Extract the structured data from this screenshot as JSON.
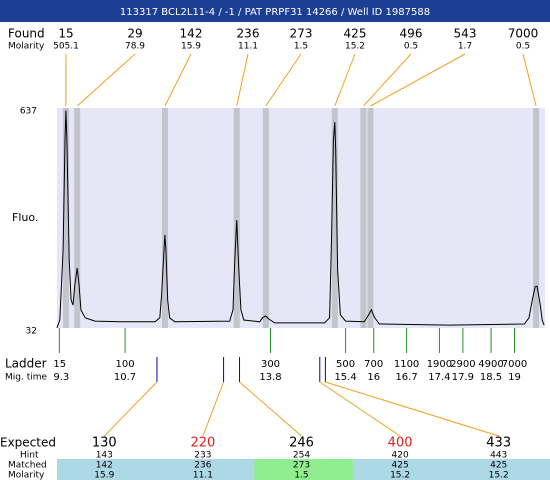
{
  "header": {
    "title": "113317  BCL2L11-4 / -1 / PAT PRPF31 14266 / Well ID 1987588"
  },
  "chart_data": {
    "type": "line",
    "y_label": "Fluo.",
    "ylim": [
      32,
      637
    ],
    "yticks": [
      637,
      32
    ],
    "xlim": [
      9.25,
      19.65
    ],
    "color": "#000000",
    "plot_color": "#e6e6f7",
    "band_color": "#c4c4cc",
    "link_color": "#f0a020",
    "x": [
      9.25,
      9.31,
      9.38,
      9.42,
      9.44,
      9.46,
      9.51,
      9.55,
      9.59,
      9.63,
      9.68,
      9.72,
      9.76,
      9.85,
      10.06,
      10.59,
      11.34,
      11.44,
      11.48,
      11.53,
      11.55,
      11.57,
      11.61,
      11.65,
      11.76,
      12.93,
      13.0,
      13.04,
      13.08,
      13.12,
      13.17,
      13.23,
      13.57,
      13.63,
      13.7,
      13.76,
      13.89,
      14.95,
      15.06,
      15.1,
      15.14,
      15.17,
      15.19,
      15.23,
      15.29,
      15.4,
      15.8,
      15.89,
      15.95,
      16.02,
      16.12,
      17.61,
      19.21,
      19.31,
      19.38,
      19.44,
      19.48,
      19.55,
      19.59,
      19.63
    ],
    "values": [
      32,
      54,
      247,
      549,
      630,
      549,
      219,
      109,
      95,
      150,
      197,
      150,
      82,
      60,
      51,
      49,
      49,
      60,
      123,
      247,
      288,
      247,
      109,
      60,
      49,
      51,
      82,
      219,
      329,
      205,
      82,
      54,
      49,
      60,
      65,
      57,
      46,
      46,
      60,
      274,
      549,
      598,
      522,
      192,
      68,
      51,
      49,
      68,
      82,
      60,
      43,
      40,
      43,
      60,
      109,
      145,
      147,
      95,
      54,
      40
    ],
    "found": {
      "label": "Found",
      "molarity_label": "Molarity",
      "sizes": [
        15,
        29,
        142,
        236,
        273,
        425,
        496,
        543,
        7000
      ],
      "molarity": [
        505.1,
        78.9,
        15.9,
        11.1,
        1.5,
        15.2,
        0.5,
        1.7,
        0.5
      ],
      "times": [
        9.44,
        9.68,
        11.55,
        13.08,
        13.7,
        15.17,
        15.78,
        15.93,
        19.46
      ]
    },
    "ladder": {
      "label": "Ladder",
      "time_label": "Mig. time",
      "color": "#2e8b2e",
      "sizes": [
        15,
        100,
        300,
        500,
        700,
        1100,
        1900,
        2900,
        4900,
        7000
      ],
      "times": [
        9.3,
        10.7,
        13.8,
        15.4,
        16,
        16.7,
        17.4,
        17.9,
        18.5,
        19
      ]
    },
    "expected": {
      "label": "Expected",
      "hint_label": "Hint",
      "matched_label": "Matched",
      "molarity_label": "Molarity",
      "tick_color": "#0000cc",
      "sizes": [
        130,
        220,
        246,
        400,
        433
      ],
      "size_colors": [
        "#000000",
        "#e02020",
        "#000000",
        "#e02020",
        "#000000"
      ],
      "times": [
        11.38,
        12.8,
        13.14,
        14.85,
        14.97
      ],
      "hint": [
        143,
        233,
        254,
        420,
        443
      ],
      "matched": [
        142,
        236,
        273,
        425,
        425
      ],
      "molarity": [
        15.9,
        11.1,
        1.5,
        15.2,
        15.2
      ],
      "matched_colors": [
        "#add8e6",
        "#add8e6",
        "#90ee90",
        "#add8e6",
        "#add8e6"
      ]
    }
  }
}
